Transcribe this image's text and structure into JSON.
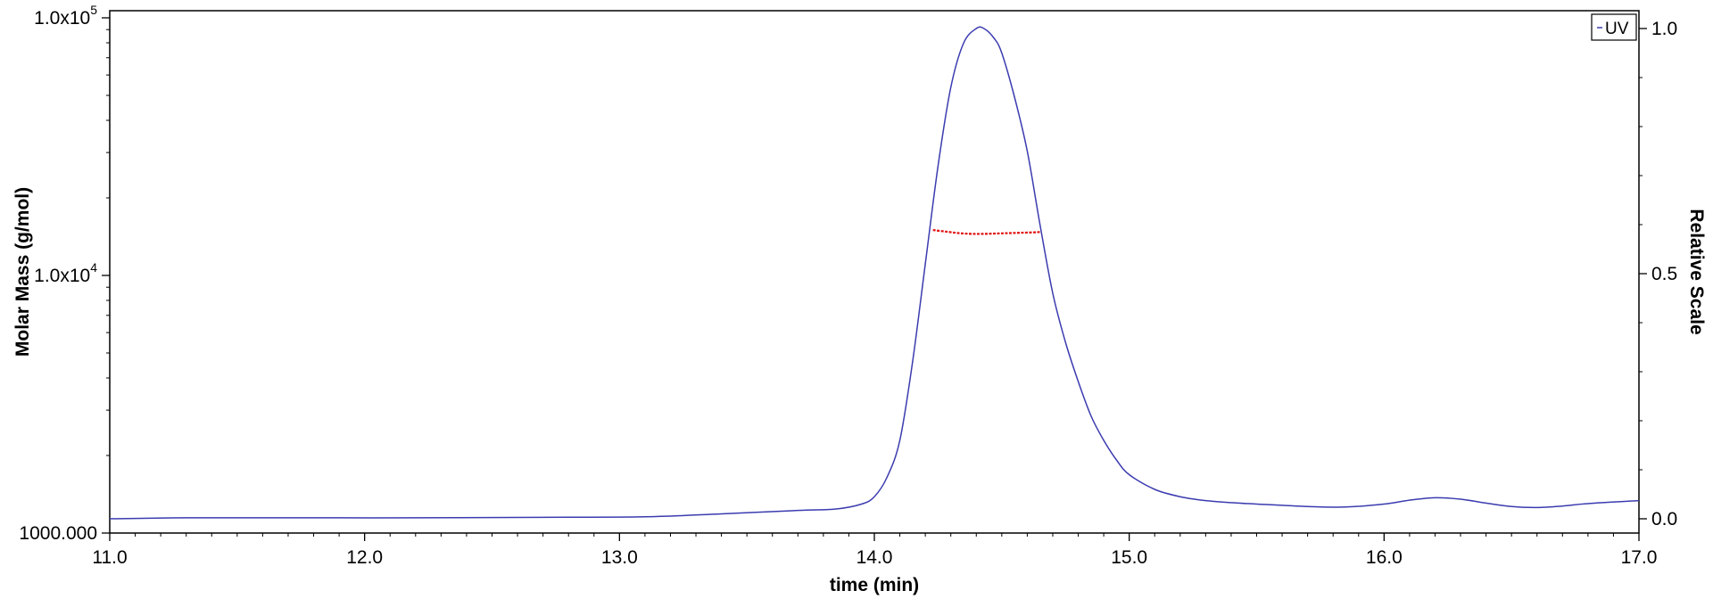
{
  "chart_data": {
    "type": "line",
    "xlabel": "time (min)",
    "ylabel_left": "Molar Mass (g/mol)",
    "ylabel_right": "Relative Scale",
    "xlim": [
      11.0,
      17.0
    ],
    "ylim_left": [
      1000,
      100000
    ],
    "yscale_left": "log",
    "ylim_right": [
      0.0,
      1.0
    ],
    "x_ticks": [
      "11.0",
      "12.0",
      "13.0",
      "14.0",
      "15.0",
      "16.0",
      "17.0"
    ],
    "y_left_ticks": [
      {
        "value": 1000,
        "base": "1000.000",
        "exp": ""
      },
      {
        "value": 10000,
        "base": "1.0x10",
        "exp": "4"
      },
      {
        "value": 100000,
        "base": "1.0x10",
        "exp": "5"
      }
    ],
    "y_right_ticks": [
      "0.0",
      "0.5",
      "1.0"
    ],
    "legend": {
      "entries": [
        "UV"
      ],
      "placement": "top-right"
    },
    "colors": {
      "uv": "#3b3bb0",
      "molar_mass": "#e01010",
      "axis": "#000000"
    },
    "series": [
      {
        "name": "UV",
        "axis": "right",
        "x": [
          11.0,
          11.3,
          11.7,
          12.2,
          12.7,
          13.1,
          13.4,
          13.7,
          13.85,
          13.95,
          14.0,
          14.05,
          14.1,
          14.15,
          14.2,
          14.25,
          14.3,
          14.35,
          14.4,
          14.43,
          14.47,
          14.5,
          14.55,
          14.6,
          14.65,
          14.7,
          14.75,
          14.8,
          14.85,
          14.9,
          14.95,
          15.0,
          15.1,
          15.2,
          15.3,
          15.4,
          15.5,
          15.7,
          15.85,
          16.0,
          16.1,
          16.2,
          16.3,
          16.4,
          16.5,
          16.6,
          16.7,
          16.8,
          17.0
        ],
        "y": [
          0.0,
          0.002,
          0.002,
          0.002,
          0.003,
          0.004,
          0.01,
          0.017,
          0.02,
          0.03,
          0.045,
          0.085,
          0.16,
          0.32,
          0.52,
          0.72,
          0.88,
          0.97,
          1.0,
          1.0,
          0.98,
          0.95,
          0.86,
          0.75,
          0.6,
          0.46,
          0.36,
          0.28,
          0.21,
          0.16,
          0.12,
          0.09,
          0.06,
          0.045,
          0.037,
          0.033,
          0.03,
          0.025,
          0.024,
          0.03,
          0.038,
          0.043,
          0.04,
          0.032,
          0.025,
          0.023,
          0.026,
          0.031,
          0.037
        ]
      },
      {
        "name": "Molar Mass",
        "axis": "left",
        "x": [
          14.23,
          14.28,
          14.33,
          14.38,
          14.43,
          14.48,
          14.53,
          14.58,
          14.63,
          14.65
        ],
        "y": [
          15000,
          14800,
          14600,
          14500,
          14500,
          14550,
          14600,
          14650,
          14700,
          14750
        ]
      }
    ]
  }
}
